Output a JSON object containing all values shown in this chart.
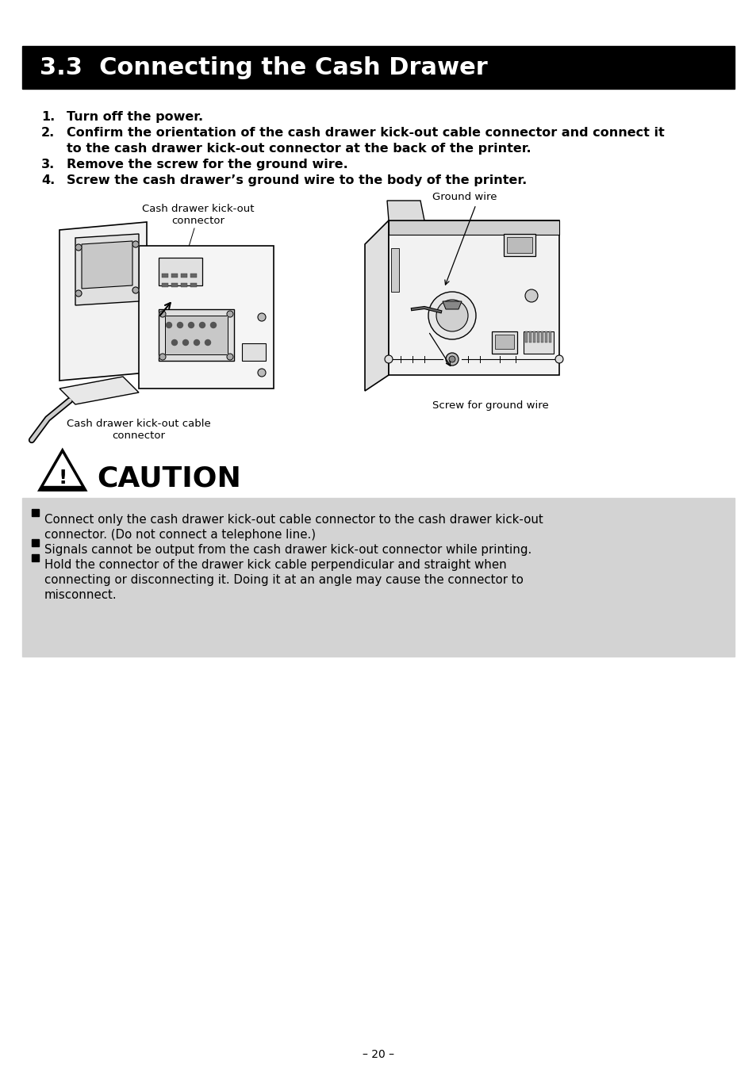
{
  "page_bg": "#ffffff",
  "header_bg": "#000000",
  "header_text": "3.3  Connecting the Cash Drawer",
  "header_text_color": "#ffffff",
  "header_fontsize": 22,
  "instruction_fontsize": 11.5,
  "caution_title": "CAUTION",
  "caution_bg": "#d3d3d3",
  "caution_bullets": [
    "Connect only the cash drawer kick-out cable connector to the cash drawer kick-out\nconnector. (Do not connect a telephone line.)",
    "Signals cannot be output from the cash drawer kick-out connector while printing.",
    "Hold the connector of the drawer kick cable perpendicular and straight when\nconnecting or disconnecting it. Doing it at an angle may cause the connector to\nmisconnect."
  ],
  "caution_fontsize": 10.8,
  "footer_text": "– 20 –",
  "footer_fontsize": 10
}
